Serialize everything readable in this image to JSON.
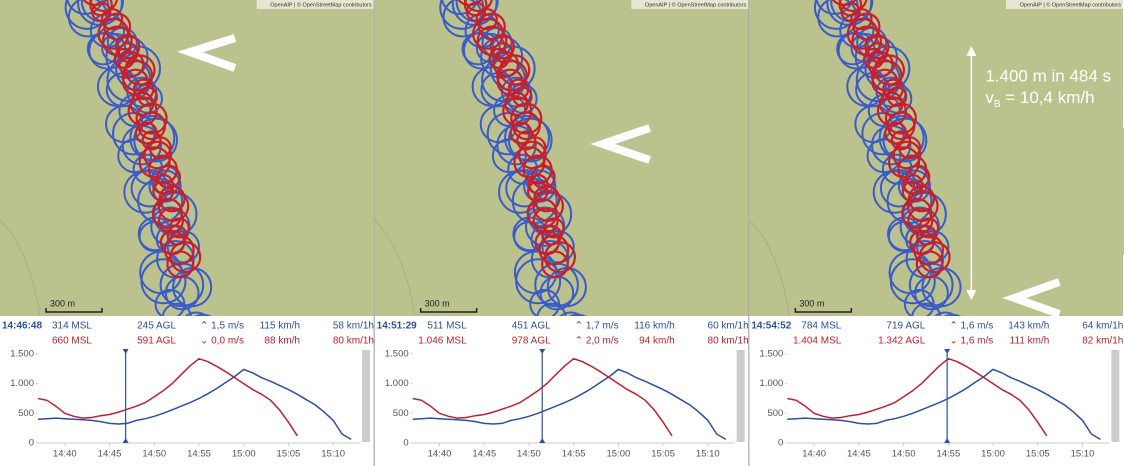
{
  "panels": [
    {
      "attribution": "OpenAIP | © OpenStreetMap contributors",
      "scale": "300 m",
      "stats": {
        "blue": [
          "314 MSL",
          "245 AGL",
          "⌃ 1,5 m/s",
          "115 km/h",
          "58 km/1h"
        ],
        "red": [
          "660 MSL",
          "591 AGL",
          "⌄ 0,0 m/s",
          "88 km/h",
          "80 km/1h"
        ]
      }
    },
    {
      "attribution": "OpenAIP | © OpenStreetMap contributors",
      "scale": "300 m",
      "stats": {
        "blue": [
          "511 MSL",
          "451 AGL",
          "⌃ 1,7 m/s",
          "116 km/h",
          "60 km/1h"
        ],
        "red": [
          "1.046 MSL",
          "978 AGL",
          "⌃ 2,0 m/s",
          "94 km/h",
          "80 km/1h"
        ]
      }
    },
    {
      "attribution": "OpenAIP | © OpenStreetMap contributors",
      "scale": "300 m",
      "stats": {
        "blue": [
          "784 MSL",
          "719 AGL",
          "⌃ 1,6 m/s",
          "143 km/h",
          "64 km/1h"
        ],
        "red": [
          "1.404 MSL",
          "1.342 AGL",
          "⌄ 1,6 m/s",
          "111 km/h",
          "82 km/1h"
        ]
      },
      "annotation": {
        "line1": "1.400 m in 484 s",
        "v": "v",
        "sub": "B",
        "rest": " = 10,4 km/h"
      }
    }
  ],
  "chart_data": [
    {
      "type": "line",
      "cursor": "14:46:48",
      "x": [
        "14:37",
        "14:38",
        "14:39",
        "14:40",
        "14:41",
        "14:42",
        "14:43",
        "14:44",
        "14:45",
        "14:46",
        "14:47",
        "14:48",
        "14:49",
        "14:50",
        "14:51",
        "14:52",
        "14:53",
        "14:54",
        "14:55",
        "14:56",
        "14:57",
        "14:58",
        "14:59",
        "15:00",
        "15:01",
        "15:02",
        "15:03",
        "15:04",
        "15:05",
        "15:06",
        "15:07",
        "15:08",
        "15:09",
        "15:10",
        "15:11",
        "15:12"
      ],
      "series": [
        {
          "color": "#2a4fa8",
          "values": [
            400,
            410,
            420,
            410,
            400,
            390,
            380,
            360,
            330,
            320,
            330,
            380,
            410,
            450,
            500,
            560,
            620,
            680,
            750,
            830,
            920,
            1020,
            1120,
            1240,
            1180,
            1100,
            1040,
            970,
            900,
            820,
            730,
            640,
            520,
            380,
            150,
            60
          ]
        },
        {
          "color": "#c0202a",
          "values": [
            750,
            720,
            620,
            500,
            450,
            420,
            430,
            460,
            480,
            520,
            570,
            620,
            680,
            780,
            880,
            1000,
            1150,
            1300,
            1420,
            1370,
            1290,
            1200,
            1100,
            1000,
            900,
            820,
            720,
            560,
            350,
            120,
            null,
            null,
            null,
            null,
            null,
            null
          ]
        }
      ],
      "xlim": [
        "14:37",
        "15:13"
      ],
      "xticks": [
        "14:40",
        "14:45",
        "14:50",
        "14:55",
        "15:00",
        "15:05",
        "15:10"
      ],
      "ylim": [
        0,
        1600
      ],
      "yticks": [
        0,
        500,
        {
          "value": 1000,
          "label": "1.000"
        },
        {
          "value": 1500,
          "label": "1.500"
        }
      ]
    },
    {
      "type": "line",
      "cursor": "14:51:29",
      "x": [
        "14:37",
        "14:38",
        "14:39",
        "14:40",
        "14:41",
        "14:42",
        "14:43",
        "14:44",
        "14:45",
        "14:46",
        "14:47",
        "14:48",
        "14:49",
        "14:50",
        "14:51",
        "14:52",
        "14:53",
        "14:54",
        "14:55",
        "14:56",
        "14:57",
        "14:58",
        "14:59",
        "15:00",
        "15:01",
        "15:02",
        "15:03",
        "15:04",
        "15:05",
        "15:06",
        "15:07",
        "15:08",
        "15:09",
        "15:10",
        "15:11",
        "15:12"
      ],
      "series": [
        {
          "color": "#2a4fa8",
          "values": [
            400,
            410,
            420,
            410,
            400,
            390,
            380,
            360,
            330,
            320,
            330,
            380,
            410,
            450,
            500,
            560,
            620,
            680,
            750,
            830,
            920,
            1020,
            1120,
            1240,
            1180,
            1100,
            1040,
            970,
            900,
            820,
            730,
            640,
            520,
            380,
            150,
            60
          ]
        },
        {
          "color": "#c0202a",
          "values": [
            750,
            720,
            620,
            500,
            450,
            420,
            430,
            460,
            480,
            520,
            570,
            620,
            680,
            780,
            880,
            1000,
            1150,
            1300,
            1420,
            1370,
            1290,
            1200,
            1100,
            1000,
            900,
            820,
            720,
            560,
            350,
            120,
            null,
            null,
            null,
            null,
            null,
            null
          ]
        }
      ],
      "xlim": [
        "14:37",
        "15:13"
      ],
      "xticks": [
        "14:40",
        "14:45",
        "14:50",
        "14:55",
        "15:00",
        "15:05",
        "15:10"
      ],
      "ylim": [
        0,
        1600
      ],
      "yticks": [
        0,
        500,
        {
          "value": 1000,
          "label": "1.000"
        },
        {
          "value": 1500,
          "label": "1.500"
        }
      ]
    },
    {
      "type": "line",
      "cursor": "14:54:52",
      "x": [
        "14:37",
        "14:38",
        "14:39",
        "14:40",
        "14:41",
        "14:42",
        "14:43",
        "14:44",
        "14:45",
        "14:46",
        "14:47",
        "14:48",
        "14:49",
        "14:50",
        "14:51",
        "14:52",
        "14:53",
        "14:54",
        "14:55",
        "14:56",
        "14:57",
        "14:58",
        "14:59",
        "15:00",
        "15:01",
        "15:02",
        "15:03",
        "15:04",
        "15:05",
        "15:06",
        "15:07",
        "15:08",
        "15:09",
        "15:10",
        "15:11",
        "15:12"
      ],
      "series": [
        {
          "color": "#2a4fa8",
          "values": [
            400,
            410,
            420,
            410,
            400,
            390,
            380,
            360,
            330,
            320,
            330,
            380,
            410,
            450,
            500,
            560,
            620,
            680,
            750,
            830,
            920,
            1020,
            1120,
            1240,
            1180,
            1100,
            1040,
            970,
            900,
            820,
            730,
            640,
            520,
            380,
            150,
            60
          ]
        },
        {
          "color": "#c0202a",
          "values": [
            750,
            720,
            620,
            500,
            450,
            420,
            430,
            460,
            480,
            520,
            570,
            620,
            680,
            780,
            880,
            1000,
            1150,
            1300,
            1420,
            1370,
            1290,
            1200,
            1100,
            1000,
            900,
            820,
            720,
            560,
            350,
            120,
            null,
            null,
            null,
            null,
            null,
            null
          ]
        }
      ],
      "xlim": [
        "14:37",
        "15:13"
      ],
      "xticks": [
        "14:40",
        "14:45",
        "14:50",
        "14:55",
        "15:00",
        "15:05",
        "15:10"
      ],
      "ylim": [
        0,
        1600
      ],
      "yticks": [
        0,
        500,
        {
          "value": 1000,
          "label": "1.000"
        },
        {
          "value": 1500,
          "label": "1.500"
        }
      ]
    }
  ]
}
